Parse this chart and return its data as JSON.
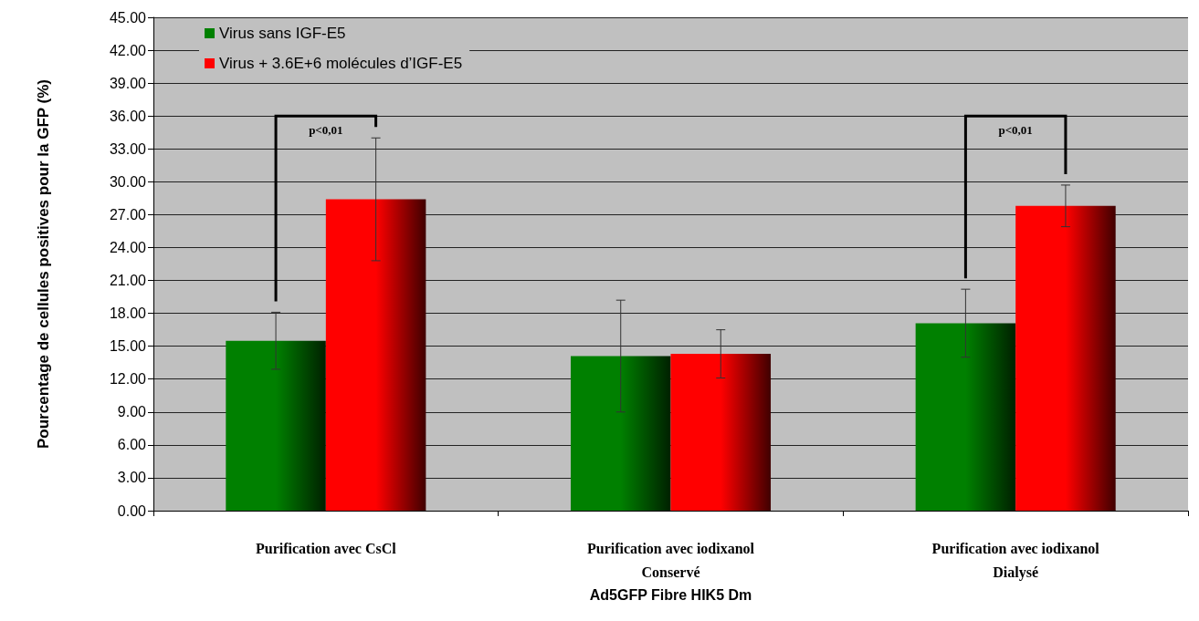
{
  "chart_data": {
    "type": "bar",
    "xlabel": "Ad5GFP Fibre HIK5 Dm",
    "ylabel": "Pourcentage de cellules positives pour la GFP (%)",
    "categories": [
      "Purification avec CsCl",
      "Purification avec iodixanol\nConservé",
      "Purification avec iodixanol\nDialysé"
    ],
    "series": [
      {
        "name": "Virus sans IGF-E5",
        "color": "#008000",
        "values": [
          15.5,
          14.1,
          17.1
        ],
        "errors": [
          2.6,
          5.1,
          3.1
        ]
      },
      {
        "name": "Virus + 3.6E+6 molécules d’IGF-E5",
        "color": "#ff0000",
        "values": [
          28.4,
          14.3,
          27.8
        ],
        "errors": [
          5.6,
          2.2,
          1.9
        ]
      }
    ],
    "ylim": [
      0,
      45
    ],
    "yticks": [
      {
        "value": 0,
        "label": "0.00"
      },
      {
        "value": 3,
        "label": "3.00"
      },
      {
        "value": 6,
        "label": "6.00"
      },
      {
        "value": 9,
        "label": "9.00"
      },
      {
        "value": 12,
        "label": "12.00"
      },
      {
        "value": 15,
        "label": "15.00"
      },
      {
        "value": 18,
        "label": "18.00"
      },
      {
        "value": 21,
        "label": "21.00"
      },
      {
        "value": 24,
        "label": "24.00"
      },
      {
        "value": 27,
        "label": "27.00"
      },
      {
        "value": 30,
        "label": "30.00"
      },
      {
        "value": 33,
        "label": "33.00"
      },
      {
        "value": 36,
        "label": "36.00"
      },
      {
        "value": 39,
        "label": "39.00"
      },
      {
        "value": 42,
        "label": "42.00"
      },
      {
        "value": 45,
        "label": "45.00"
      }
    ],
    "annotations": [
      "p<0,01",
      "p<0,01"
    ],
    "grid": "y",
    "legend": "top left"
  }
}
